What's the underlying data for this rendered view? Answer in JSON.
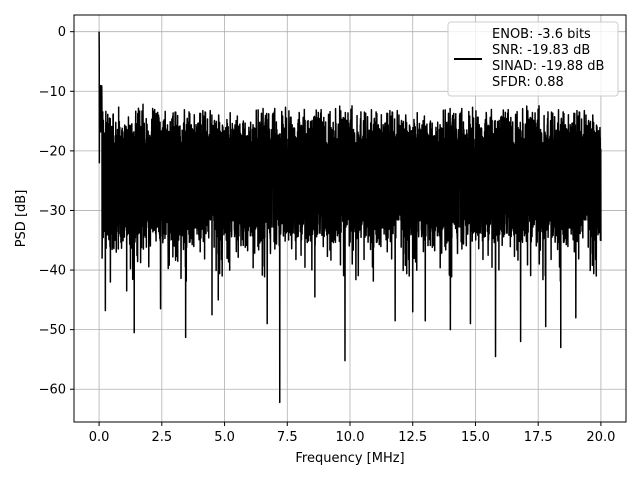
{
  "chart_data": {
    "type": "line",
    "xlabel": "Frequency [MHz]",
    "ylabel": "PSD [dB]",
    "xlim": [
      -1.0,
      21.0
    ],
    "ylim": [
      -65.5,
      2.8
    ],
    "x_ticks": [
      0.0,
      2.5,
      5.0,
      7.5,
      10.0,
      12.5,
      15.0,
      17.5,
      20.0
    ],
    "x_tick_labels": [
      "0.0",
      "2.5",
      "5.0",
      "7.5",
      "10.0",
      "12.5",
      "15.0",
      "17.5",
      "20.0"
    ],
    "y_ticks": [
      0,
      -10,
      -20,
      -30,
      -40,
      -50,
      -60
    ],
    "y_tick_labels": [
      "0",
      "−10",
      "−20",
      "−30",
      "−40",
      "−50",
      "−60"
    ],
    "grid": true,
    "legend_position": "top-right",
    "line_color": "#000000",
    "legend": {
      "lines": [
        "ENOB: -3.6 bits",
        "SNR: -19.83 dB",
        "SINAD: -19.88 dB",
        "SFDR: 0.88"
      ]
    },
    "x_range": [
      0.0,
      20.0
    ],
    "peak": {
      "x": 0.0,
      "y": 0.0
    },
    "deep_nulls": [
      {
        "x": 0.12,
        "y": -38.0
      },
      {
        "x": 0.25,
        "y": -46.8
      },
      {
        "x": 0.45,
        "y": -42.0
      },
      {
        "x": 1.1,
        "y": -43.5
      },
      {
        "x": 1.4,
        "y": -50.5
      },
      {
        "x": 2.45,
        "y": -46.5
      },
      {
        "x": 3.45,
        "y": -51.3
      },
      {
        "x": 4.5,
        "y": -47.5
      },
      {
        "x": 4.75,
        "y": -45.0
      },
      {
        "x": 6.7,
        "y": -49.0
      },
      {
        "x": 7.2,
        "y": -62.2
      },
      {
        "x": 8.6,
        "y": -44.5
      },
      {
        "x": 9.8,
        "y": -55.2
      },
      {
        "x": 11.8,
        "y": -48.5
      },
      {
        "x": 12.5,
        "y": -47.0
      },
      {
        "x": 13.0,
        "y": -48.5
      },
      {
        "x": 14.0,
        "y": -50.0
      },
      {
        "x": 14.8,
        "y": -49.0
      },
      {
        "x": 15.8,
        "y": -54.5
      },
      {
        "x": 16.8,
        "y": -52.0
      },
      {
        "x": 17.8,
        "y": -49.5
      },
      {
        "x": 18.4,
        "y": -53.0
      },
      {
        "x": 19.0,
        "y": -48.0
      }
    ],
    "noise_floor": {
      "top": -12.0,
      "median": -25.0,
      "typical_low": -36.0
    }
  }
}
